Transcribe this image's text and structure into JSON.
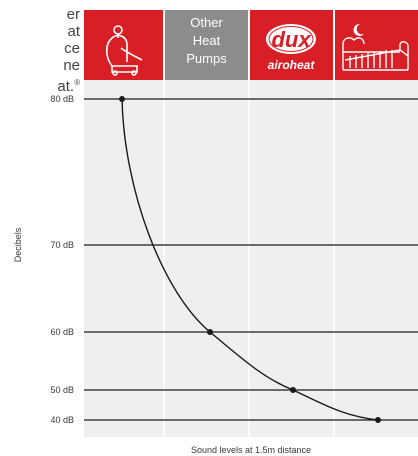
{
  "intro": {
    "lines": [
      "er",
      "at",
      "ce",
      "ne",
      "at."
    ],
    "reg_mark": "®"
  },
  "header": {
    "col1_icon": "vacuum-cleaner-icon",
    "col2_lines": [
      "Other",
      "Heat",
      "Pumps"
    ],
    "col3_logo_main": "dux",
    "col3_logo_sub_a": "airo",
    "col3_logo_sub_b": "heat",
    "col4_icon": "bed-with-moon-icon"
  },
  "colors": {
    "red": "#d91f26",
    "grey_header": "#8c8c8c",
    "plot_bg": "#efeff2",
    "line": "#1a1a1a"
  },
  "chart_data": {
    "type": "line",
    "ylabel": "Decibels",
    "xlabel": "Sound levels at 1.5m distance",
    "y_ticks": [
      {
        "value": 80,
        "label": "80 dB"
      },
      {
        "value": 70,
        "label": "70 dB"
      },
      {
        "value": 60,
        "label": "60 dB"
      },
      {
        "value": 50,
        "label": "50 dB"
      },
      {
        "value": 40,
        "label": "40 dB"
      }
    ],
    "ylim": [
      40,
      80
    ],
    "categories": [
      "Vacuum cleaner",
      "Other Heat Pumps",
      "Dux Airoheat",
      "Bedroom"
    ],
    "points": [
      {
        "category_index": 0,
        "value": 80
      },
      {
        "category_index": 1,
        "value": 60
      },
      {
        "category_index": 2,
        "value": 50
      },
      {
        "category_index": 3,
        "value": 40
      }
    ],
    "grid": true
  }
}
